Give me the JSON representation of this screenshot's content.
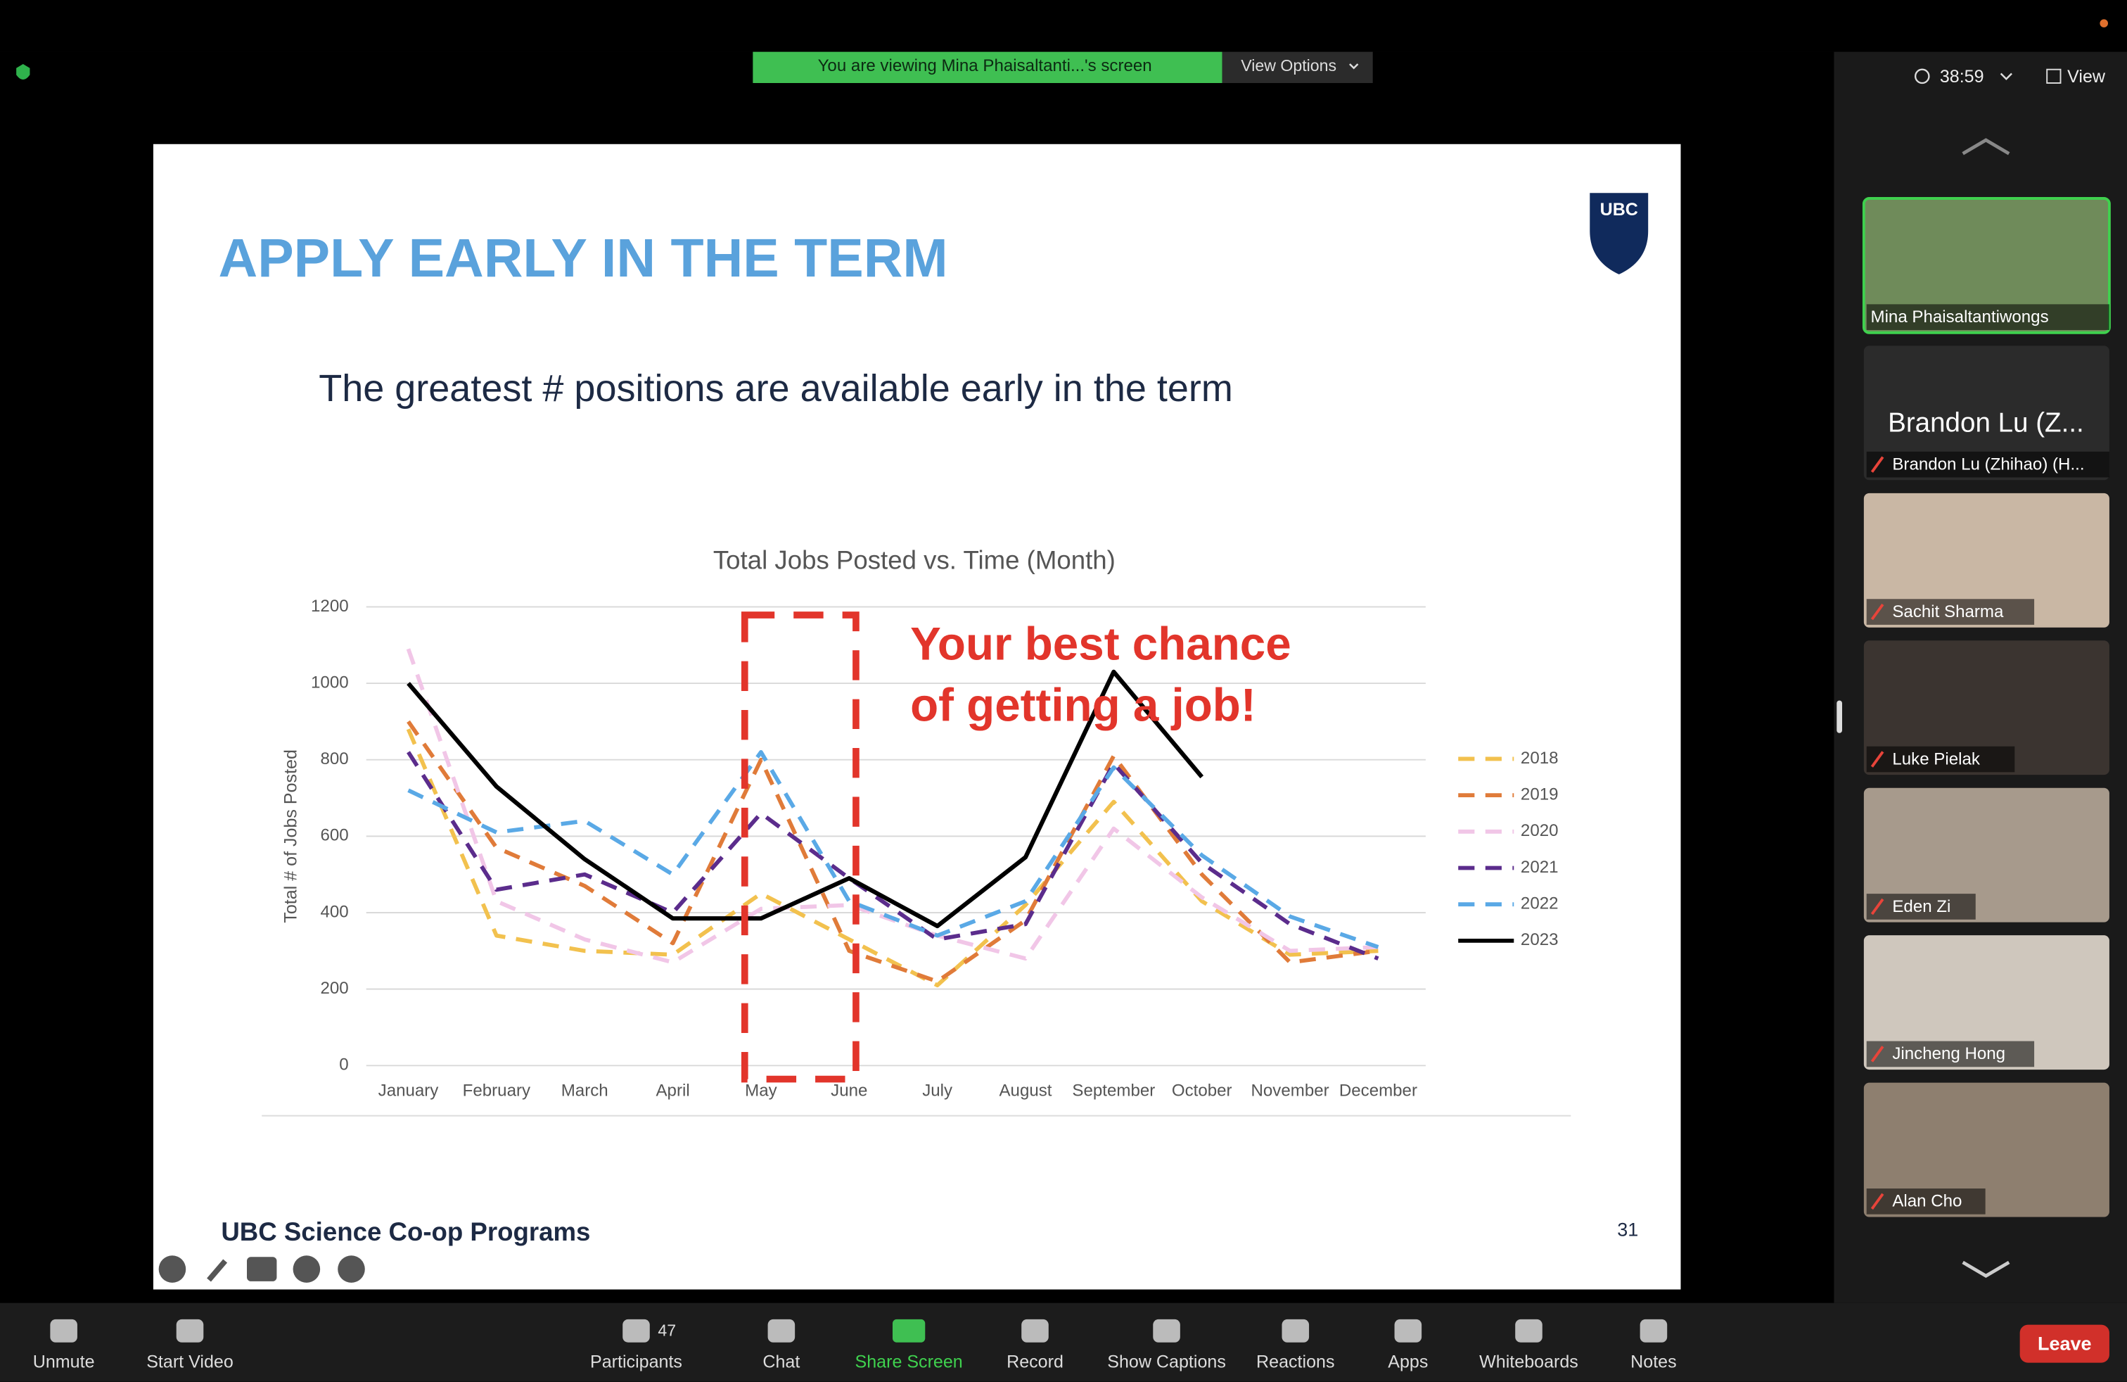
{
  "zoom": {
    "banner": "You are viewing Mina Phaisaltanti...'s screen",
    "view_options": "View Options",
    "timer": "38:59",
    "view": "View",
    "tiles": [
      {
        "name": "Mina Phaisaltantiwongs"
      },
      {
        "big": "Brandon Lu (Z...",
        "name": "Brandon Lu (Zhihao) (H..."
      },
      {
        "name": "Sachit Sharma"
      },
      {
        "name": "Luke Pielak"
      },
      {
        "name": "Eden Zi"
      },
      {
        "name": "Jincheng Hong"
      },
      {
        "name": "Alan Cho"
      }
    ],
    "participants_count": "47",
    "toolbar": [
      "Unmute",
      "Start Video",
      "Participants",
      "Chat",
      "Share Screen",
      "Record",
      "Show Captions",
      "Reactions",
      "Apps",
      "Whiteboards",
      "Notes"
    ],
    "leave": "Leave"
  },
  "slide": {
    "heading": "APPLY EARLY IN THE TERM",
    "subheading": "The greatest # positions are available early in the term",
    "logo": "UBC",
    "footer": "UBC Science Co-op Programs",
    "page": "31"
  },
  "chart_data": {
    "type": "line",
    "title": "Total Jobs Posted vs. Time (Month)",
    "y_label": "Total # of Jobs Posted",
    "annotation": [
      "Your best chance",
      "of getting a job!"
    ],
    "categories": [
      "January",
      "February",
      "March",
      "April",
      "May",
      "June",
      "July",
      "August",
      "September",
      "October",
      "November",
      "December"
    ],
    "ylim": [
      0,
      1200
    ],
    "yticks": [
      0,
      200,
      400,
      600,
      800,
      1000,
      1200
    ],
    "grid": true,
    "series": [
      {
        "name": "2018",
        "color": "#f2c14e",
        "dashed": true,
        "values": [
          880,
          340,
          300,
          290,
          450,
          330,
          210,
          420,
          690,
          430,
          290,
          300
        ]
      },
      {
        "name": "2019",
        "color": "#e07b39",
        "dashed": true,
        "values": [
          900,
          570,
          470,
          320,
          800,
          300,
          220,
          380,
          810,
          500,
          270,
          300
        ]
      },
      {
        "name": "2020",
        "color": "#f1c6e7",
        "dashed": true,
        "values": [
          1090,
          430,
          330,
          270,
          410,
          420,
          340,
          280,
          620,
          440,
          300,
          310
        ]
      },
      {
        "name": "2021",
        "color": "#5b2c8c",
        "dashed": true,
        "values": [
          820,
          460,
          500,
          400,
          660,
          490,
          330,
          370,
          790,
          530,
          370,
          280
        ]
      },
      {
        "name": "2022",
        "color": "#5aa9e6",
        "dashed": true,
        "values": [
          720,
          610,
          640,
          500,
          820,
          430,
          340,
          430,
          780,
          550,
          390,
          310
        ]
      },
      {
        "name": "2023",
        "color": "#000000",
        "dashed": false,
        "values": [
          1000,
          730,
          540,
          385,
          385,
          490,
          365,
          545,
          1030,
          755,
          null,
          null
        ]
      }
    ]
  }
}
